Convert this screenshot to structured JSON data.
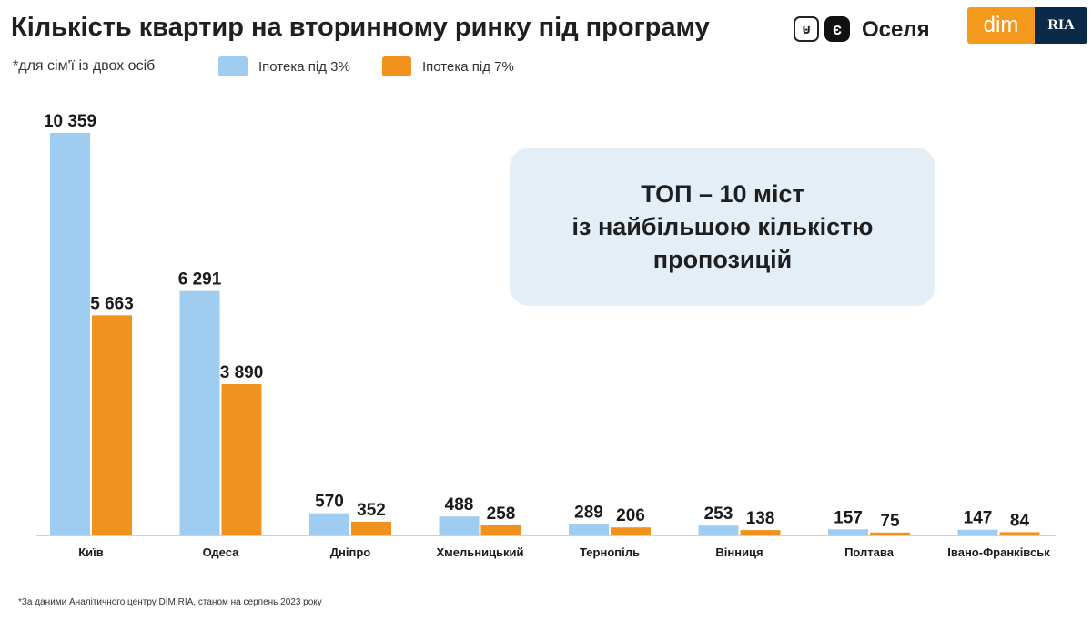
{
  "title": "Кількість квартир на вторинному ринку під програму",
  "brand": {
    "gov_icon": "trident-icon",
    "e_icon": "є",
    "program_name": "Оселя",
    "logo_left": "dim",
    "logo_right": "RIA"
  },
  "subnote": "*для сім'ї із двох осіб",
  "callout": {
    "line1": "ТОП – 10 міст",
    "line2": "із найбільшою кількістю",
    "line3": "пропозицій"
  },
  "footnote": "*За даними Аналітичного центру DIM.RIA, станом на серпень 2023 року",
  "colors": {
    "series_3": "#9fcdf1",
    "series_7": "#f2921e"
  },
  "chart_data": {
    "type": "bar",
    "categories": [
      "Київ",
      "Одеса",
      "Дніпро",
      "Хмельницький",
      "Тернопіль",
      "Вінниця",
      "Полтава",
      "Івано-Франківськ"
    ],
    "series": [
      {
        "name": "Іпотека під 3%",
        "values": [
          10359,
          6291,
          570,
          488,
          289,
          253,
          157,
          147
        ],
        "labels": [
          "10 359",
          "6 291",
          "570",
          "488",
          "289",
          "253",
          "157",
          "147"
        ]
      },
      {
        "name": "Іпотека під 7%",
        "values": [
          5663,
          3890,
          352,
          258,
          206,
          138,
          75,
          84
        ],
        "labels": [
          "5 663",
          "3 890",
          "352",
          "258",
          "206",
          "138",
          "75",
          "84"
        ]
      }
    ],
    "ylim": [
      0,
      10359
    ],
    "grid": false,
    "legend": "top-left",
    "data_labels": true
  }
}
